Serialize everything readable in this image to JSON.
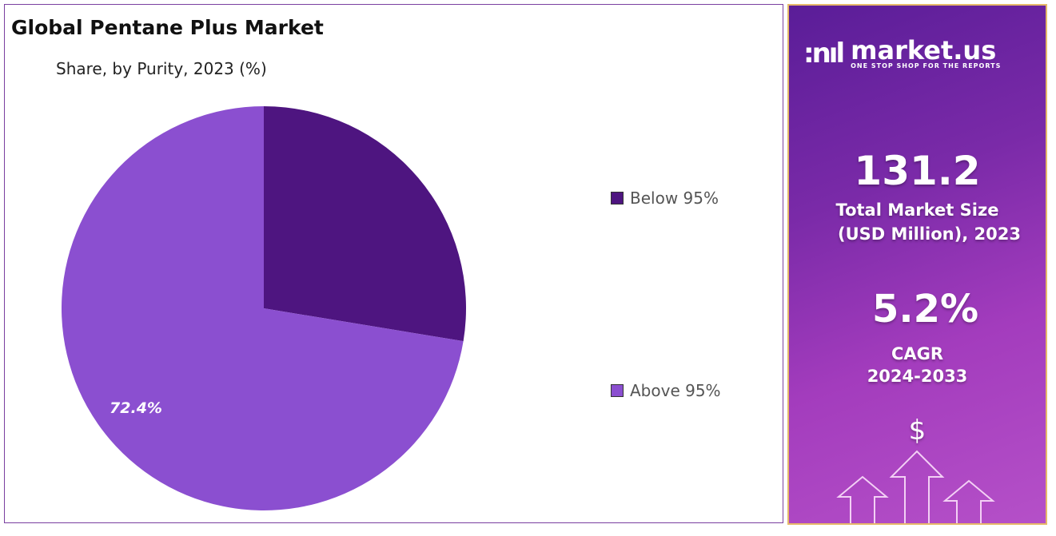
{
  "chart_data": {
    "type": "pie",
    "title": "Global Pentane Plus Market",
    "subtitle": "Share, by Purity, 2023 (%)",
    "categories": [
      "Below 95%",
      "Above 95%"
    ],
    "values": [
      27.6,
      72.4
    ],
    "colors": [
      "#4e1580",
      "#8b4fd0"
    ],
    "data_labels": [
      "",
      "72.4%"
    ],
    "legend_position": "right"
  },
  "panel": {
    "brand": "market.us",
    "tagline": "ONE STOP SHOP FOR THE REPORTS",
    "market_size": "131.2",
    "market_size_label_1": "Total Market Size",
    "market_size_label_2": "(USD Million), 2023",
    "cagr": "5.2%",
    "cagr_label": "CAGR",
    "cagr_period": "2024-2033",
    "currency_symbol": "$"
  }
}
